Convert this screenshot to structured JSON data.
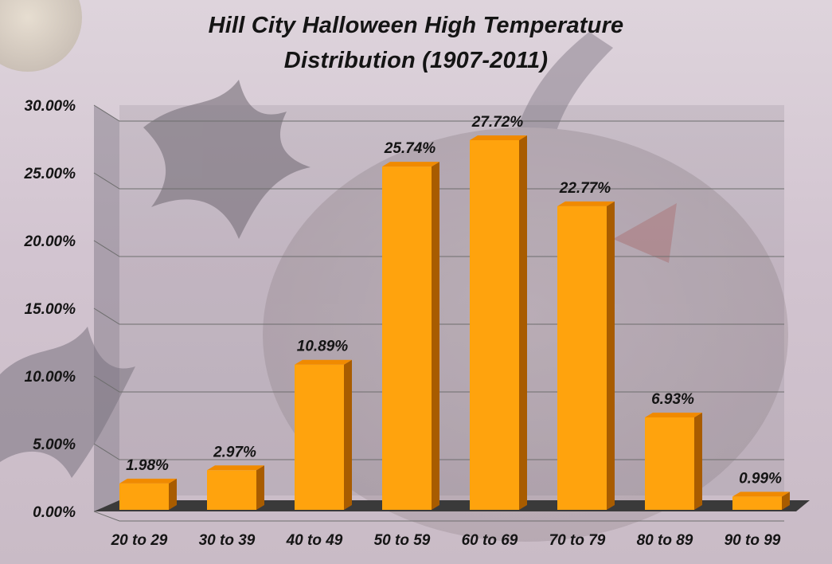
{
  "chart_data": {
    "type": "bar",
    "title_lines": [
      "Hill City Halloween High Temperature",
      "Distribution (1907-2011)"
    ],
    "categories": [
      "20 to 29",
      "30 to 39",
      "40 to 49",
      "50 to 59",
      "60 to 69",
      "70 to 79",
      "80 to 89",
      "90 to 99"
    ],
    "values": [
      1.98,
      2.97,
      10.89,
      25.74,
      27.72,
      22.77,
      6.93,
      0.99
    ],
    "data_labels": [
      "1.98%",
      "2.97%",
      "10.89%",
      "25.74%",
      "27.72%",
      "22.77%",
      "6.93%",
      "0.99%"
    ],
    "y_ticks": [
      "0.00%",
      "5.00%",
      "10.00%",
      "15.00%",
      "20.00%",
      "25.00%",
      "30.00%"
    ],
    "ylim": [
      0,
      30
    ],
    "xlabel": "",
    "ylabel": "",
    "grid": true,
    "legend": "none",
    "style": "3d-column",
    "colors": {
      "bar_front": "#ffa30d",
      "bar_top": "#f08a00",
      "bar_side": "#a85c00",
      "floor": "#3a3a3a",
      "back_wall": "#7a7480",
      "gridline": "#6e6e6e",
      "text": "#141414"
    }
  }
}
